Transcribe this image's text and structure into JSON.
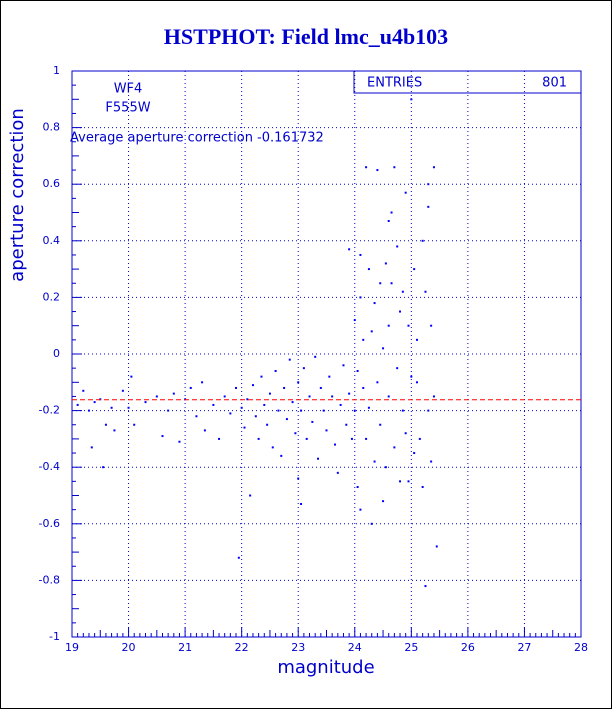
{
  "chart_data": {
    "type": "scatter",
    "title": "HSTPHOT: Field lmc_u4b103",
    "xlabel": "magnitude",
    "ylabel": "aperture correction",
    "annotations": [
      "WF4",
      "F555W",
      "Average aperture correction -0.161732"
    ],
    "stats": {
      "label": "ENTRIES",
      "value": 801
    },
    "color": "#0000ff",
    "mean_line": {
      "value": -0.161732,
      "color": "#ff0000"
    },
    "xlim": [
      19,
      28
    ],
    "ylim": [
      -1,
      1
    ],
    "xticks": [
      19,
      20,
      21,
      22,
      23,
      24,
      25,
      26,
      27,
      28
    ],
    "yticks": [
      -1,
      -0.8,
      -0.6,
      -0.4,
      -0.2,
      0,
      0.2,
      0.4,
      0.6,
      0.8,
      1
    ],
    "grid": true,
    "x": [
      19.1,
      19.2,
      19.3,
      19.35,
      19.4,
      19.5,
      19.55,
      19.6,
      19.7,
      19.75,
      19.9,
      20.0,
      20.05,
      20.1,
      20.3,
      20.5,
      20.6,
      20.7,
      20.8,
      20.9,
      21.0,
      21.1,
      21.2,
      21.3,
      21.35,
      21.5,
      21.6,
      21.7,
      21.8,
      21.9,
      21.95,
      22.0,
      22.05,
      22.1,
      22.15,
      22.2,
      22.25,
      22.3,
      22.35,
      22.4,
      22.45,
      22.5,
      22.55,
      22.6,
      22.65,
      22.7,
      22.75,
      22.8,
      22.85,
      22.9,
      22.95,
      23.0,
      23.0,
      23.05,
      23.05,
      23.1,
      23.15,
      23.2,
      23.25,
      23.3,
      23.35,
      23.4,
      23.45,
      23.5,
      23.55,
      23.6,
      23.65,
      23.7,
      23.75,
      23.8,
      23.85,
      23.9,
      23.9,
      23.95,
      24.0,
      24.0,
      24.05,
      24.05,
      24.1,
      24.1,
      24.15,
      24.15,
      24.2,
      24.2,
      24.25,
      24.25,
      24.3,
      24.3,
      24.35,
      24.35,
      24.4,
      24.4,
      24.45,
      24.45,
      24.5,
      24.5,
      24.55,
      24.55,
      24.6,
      24.6,
      24.65,
      24.65,
      24.7,
      24.7,
      24.75,
      24.75,
      24.8,
      24.8,
      24.85,
      24.85,
      24.9,
      24.9,
      24.95,
      24.95,
      25.0,
      25.0,
      25.05,
      25.05,
      25.1,
      25.1,
      25.15,
      25.2,
      25.2,
      25.25,
      25.25,
      25.3,
      25.3,
      25.35,
      25.35,
      25.4,
      25.4,
      25.45,
      25.3,
      24.6,
      24.1
    ],
    "y": [
      -0.18,
      -0.13,
      -0.2,
      -0.33,
      -0.17,
      -0.16,
      -0.4,
      -0.25,
      -0.19,
      -0.27,
      -0.13,
      -0.19,
      -0.08,
      -0.25,
      -0.17,
      -0.15,
      -0.29,
      -0.2,
      -0.14,
      -0.31,
      -0.16,
      -0.12,
      -0.22,
      -0.1,
      -0.27,
      -0.18,
      -0.3,
      -0.15,
      -0.21,
      -0.12,
      -0.72,
      -0.19,
      -0.26,
      -0.16,
      -0.5,
      -0.11,
      -0.22,
      -0.3,
      -0.08,
      -0.18,
      -0.25,
      -0.14,
      -0.33,
      -0.06,
      -0.2,
      -0.36,
      -0.12,
      -0.23,
      -0.02,
      -0.17,
      -0.28,
      -0.44,
      -0.1,
      -0.2,
      -0.53,
      -0.05,
      -0.3,
      -0.15,
      -0.24,
      -0.01,
      -0.37,
      -0.12,
      -0.2,
      -0.27,
      -0.08,
      -0.15,
      -0.32,
      -0.42,
      -0.18,
      -0.04,
      -0.25,
      0.37,
      -0.14,
      -0.3,
      -0.2,
      0.12,
      -0.06,
      -0.47,
      0.2,
      -0.55,
      -0.12,
      0.05,
      0.66,
      -0.3,
      -0.19,
      0.3,
      -0.6,
      0.08,
      -0.38,
      0.18,
      0.65,
      -0.1,
      0.25,
      -0.25,
      -0.52,
      0.02,
      0.32,
      -0.4,
      0.1,
      -0.15,
      0.5,
      0.25,
      -0.33,
      0.66,
      -0.05,
      0.38,
      -0.45,
      0.15,
      0.22,
      -0.2,
      0.57,
      -0.28,
      0.1,
      -0.45,
      0.9,
      -0.08,
      0.3,
      -0.35,
      -0.1,
      0.05,
      -0.3,
      0.4,
      -0.47,
      0.22,
      -0.82,
      0.52,
      -0.2,
      0.1,
      -0.38,
      0.66,
      -0.15,
      -0.68,
      0.6,
      0.47,
      0.35
    ]
  }
}
